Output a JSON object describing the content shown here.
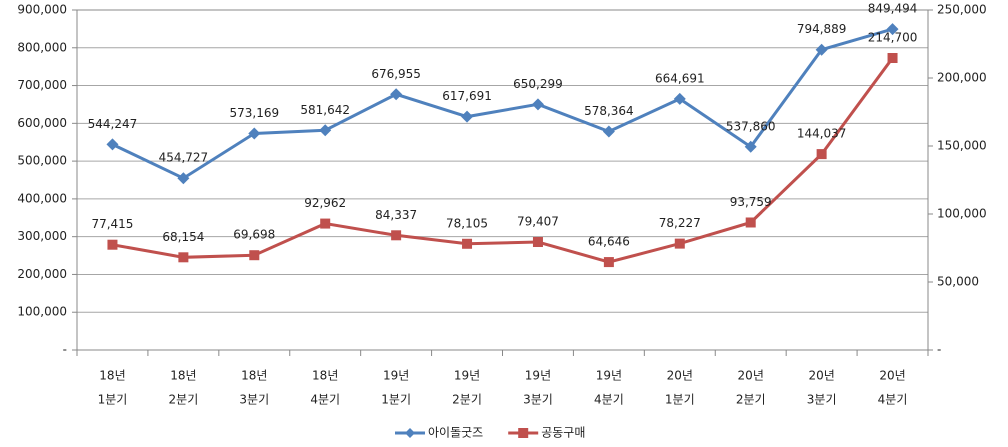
{
  "chart_data": {
    "type": "line",
    "categories": [
      [
        "18년",
        "1분기"
      ],
      [
        "18년",
        "2분기"
      ],
      [
        "18년",
        "3분기"
      ],
      [
        "18년",
        "4분기"
      ],
      [
        "19년",
        "1분기"
      ],
      [
        "19년",
        "2분기"
      ],
      [
        "19년",
        "3분기"
      ],
      [
        "19년",
        "4분기"
      ],
      [
        "20년",
        "1분기"
      ],
      [
        "20년",
        "2분기"
      ],
      [
        "20년",
        "3분기"
      ],
      [
        "20년",
        "4분기"
      ]
    ],
    "series": [
      {
        "name": "아이돌굿즈",
        "color": "#4f81bd",
        "marker": "diamond",
        "values": [
          544247,
          454727,
          573169,
          581642,
          676955,
          617691,
          650299,
          578364,
          664691,
          537860,
          794889,
          849494
        ],
        "value_labels": [
          "544,247",
          "454,727",
          "573,169",
          "581,642",
          "676,955",
          "617,691",
          "650,299",
          "578,364",
          "664,691",
          "537,860",
          "794,889",
          "849,494"
        ]
      },
      {
        "name": "공동구매",
        "color": "#c0504d",
        "marker": "square",
        "axis": "y2",
        "values": [
          77415,
          68154,
          69698,
          92962,
          84337,
          78105,
          79407,
          64646,
          78227,
          93759,
          144037,
          214700
        ],
        "value_labels": [
          "77,415",
          "68,154",
          "69,698",
          "92,962",
          "84,337",
          "78,105",
          "79,407",
          "64,646",
          "78,227",
          "93,759",
          "144,037",
          "214,700"
        ]
      }
    ],
    "ylim": [
      0,
      900000
    ],
    "yticks": [
      {
        "value": 0,
        "label": "-"
      },
      {
        "value": 100000,
        "label": "100,000"
      },
      {
        "value": 200000,
        "label": "200,000"
      },
      {
        "value": 300000,
        "label": "300,000"
      },
      {
        "value": 400000,
        "label": "400,000"
      },
      {
        "value": 500000,
        "label": "500,000"
      },
      {
        "value": 600000,
        "label": "600,000"
      },
      {
        "value": 700000,
        "label": "700,000"
      },
      {
        "value": 800000,
        "label": "800,000"
      },
      {
        "value": 900000,
        "label": "900,000"
      }
    ],
    "y2lim": [
      0,
      250000
    ],
    "y2ticks": [
      {
        "value": 0,
        "label": "-"
      },
      {
        "value": 50000,
        "label": "50,000"
      },
      {
        "value": 100000,
        "label": "100,000"
      },
      {
        "value": 150000,
        "label": "150,000"
      },
      {
        "value": 200000,
        "label": "200,000"
      },
      {
        "value": 250000,
        "label": "250,000"
      }
    ],
    "grid": true,
    "legend": "bottom"
  }
}
